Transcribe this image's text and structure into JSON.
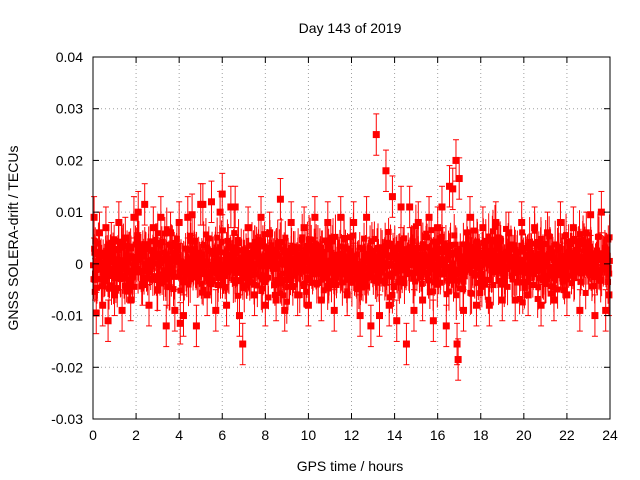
{
  "chart_data": {
    "type": "scatter",
    "title": "Day 143 of 2019",
    "xlabel": "GPS time / hours",
    "ylabel": "GNSS SOLERA-drift / TECUs",
    "xlim": [
      0,
      24
    ],
    "ylim": [
      -0.03,
      0.04
    ],
    "x_ticks": [
      0,
      2,
      4,
      6,
      8,
      10,
      12,
      14,
      16,
      18,
      20,
      22,
      24
    ],
    "x_tick_labels": [
      "0",
      "2",
      "4",
      "6",
      "8",
      "10",
      "12",
      "14",
      "16",
      "18",
      "20",
      "22",
      "24"
    ],
    "y_ticks": [
      -0.03,
      -0.02,
      -0.01,
      0,
      0.01,
      0.02,
      0.03,
      0.04
    ],
    "y_tick_labels": [
      "-0.03",
      "-0.02",
      "-0.01",
      "0",
      "0.01",
      "0.02",
      "0.03",
      "0.04"
    ],
    "grid": true,
    "legend": "none",
    "colors": {
      "series": "#ff0000",
      "grid": "#a0a0a0",
      "axis": "#000000"
    },
    "series": [
      {
        "marker": "square",
        "error_bars": true,
        "approx_error_half_width": 0.004,
        "notes_points_sampled": true,
        "points": [
          [
            0.05,
            0.009
          ],
          [
            0.1,
            -0.003
          ],
          [
            0.15,
            -0.0095
          ],
          [
            0.3,
            0.006
          ],
          [
            0.45,
            -0.008
          ],
          [
            0.6,
            0.007
          ],
          [
            0.7,
            -0.011
          ],
          [
            0.85,
            0.004
          ],
          [
            1.0,
            -0.006
          ],
          [
            1.2,
            0.008
          ],
          [
            1.35,
            -0.009
          ],
          [
            1.5,
            0.005
          ],
          [
            1.75,
            -0.007
          ],
          [
            1.9,
            0.009
          ],
          [
            2.1,
            0.01
          ],
          [
            2.3,
            -0.004
          ],
          [
            2.4,
            0.0115
          ],
          [
            2.6,
            -0.008
          ],
          [
            2.8,
            0.007
          ],
          [
            3.0,
            -0.005
          ],
          [
            3.15,
            0.009
          ],
          [
            3.4,
            -0.012
          ],
          [
            3.6,
            0.006
          ],
          [
            3.8,
            -0.009
          ],
          [
            4.0,
            0.008
          ],
          [
            4.05,
            -0.0115
          ],
          [
            4.2,
            -0.01
          ],
          [
            4.4,
            0.009
          ],
          [
            4.6,
            0.0095
          ],
          [
            4.8,
            -0.012
          ],
          [
            5.0,
            0.0115
          ],
          [
            5.1,
            0.0115
          ],
          [
            5.3,
            -0.006
          ],
          [
            5.5,
            0.012
          ],
          [
            5.7,
            -0.009
          ],
          [
            5.9,
            0.01
          ],
          [
            6.0,
            0.0135
          ],
          [
            6.2,
            -0.008
          ],
          [
            6.4,
            0.011
          ],
          [
            6.6,
            0.011
          ],
          [
            6.8,
            -0.01
          ],
          [
            6.95,
            -0.0155
          ],
          [
            7.2,
            0.007
          ],
          [
            7.5,
            -0.006
          ],
          [
            7.8,
            0.009
          ],
          [
            8.0,
            -0.008
          ],
          [
            8.2,
            0.006
          ],
          [
            8.5,
            -0.007
          ],
          [
            8.7,
            0.0125
          ],
          [
            8.9,
            -0.009
          ],
          [
            9.2,
            0.008
          ],
          [
            9.5,
            -0.006
          ],
          [
            9.8,
            0.007
          ],
          [
            10.0,
            -0.008
          ],
          [
            10.3,
            0.009
          ],
          [
            10.6,
            -0.007
          ],
          [
            10.9,
            0.008
          ],
          [
            11.2,
            -0.009
          ],
          [
            11.5,
            0.009
          ],
          [
            11.8,
            -0.006
          ],
          [
            12.1,
            0.008
          ],
          [
            12.4,
            -0.01
          ],
          [
            12.7,
            0.009
          ],
          [
            12.9,
            -0.012
          ],
          [
            13.15,
            0.025
          ],
          [
            13.3,
            -0.01
          ],
          [
            13.6,
            0.018
          ],
          [
            13.75,
            -0.008
          ],
          [
            13.9,
            0.013
          ],
          [
            14.1,
            -0.011
          ],
          [
            14.3,
            0.011
          ],
          [
            14.55,
            -0.0155
          ],
          [
            14.7,
            0.011
          ],
          [
            14.9,
            -0.009
          ],
          [
            15.1,
            0.008
          ],
          [
            15.3,
            -0.007
          ],
          [
            15.6,
            0.009
          ],
          [
            15.8,
            -0.011
          ],
          [
            16.0,
            0.007
          ],
          [
            16.2,
            0.011
          ],
          [
            16.4,
            -0.012
          ],
          [
            16.55,
            0.015
          ],
          [
            16.7,
            0.0145
          ],
          [
            16.85,
            0.02
          ],
          [
            16.9,
            -0.0155
          ],
          [
            16.95,
            -0.0185
          ],
          [
            17.0,
            0.0165
          ],
          [
            17.2,
            -0.009
          ],
          [
            17.5,
            0.009
          ],
          [
            17.8,
            -0.008
          ],
          [
            18.1,
            0.007
          ],
          [
            18.4,
            -0.008
          ],
          [
            18.7,
            0.008
          ],
          [
            19.0,
            -0.007
          ],
          [
            19.3,
            0.006
          ],
          [
            19.6,
            -0.007
          ],
          [
            19.9,
            0.008
          ],
          [
            20.2,
            -0.006
          ],
          [
            20.5,
            0.007
          ],
          [
            20.8,
            -0.008
          ],
          [
            21.1,
            0.006
          ],
          [
            21.4,
            -0.007
          ],
          [
            21.7,
            0.008
          ],
          [
            22.0,
            -0.006
          ],
          [
            22.3,
            0.007
          ],
          [
            22.6,
            -0.009
          ],
          [
            22.9,
            0.006
          ],
          [
            23.1,
            0.0095
          ],
          [
            23.3,
            -0.01
          ],
          [
            23.6,
            0.01
          ],
          [
            23.8,
            -0.009
          ],
          [
            23.95,
            -0.006
          ]
        ],
        "noise_band": {
          "x_range": [
            0,
            24
          ],
          "typical_amplitude": 0.008
        }
      }
    ]
  }
}
